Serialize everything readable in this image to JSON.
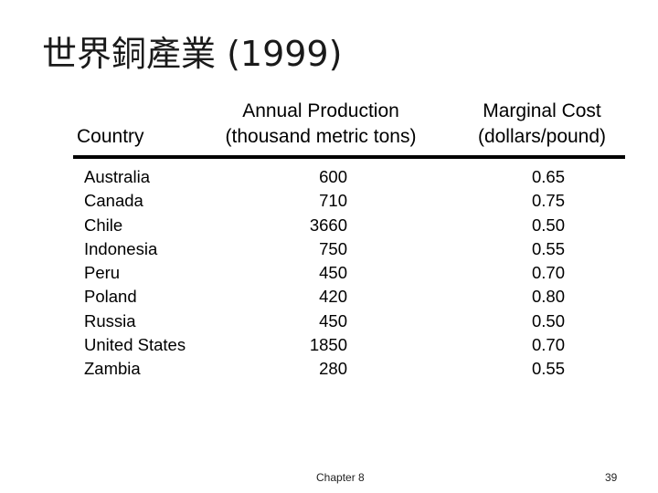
{
  "title": "世界銅產業 (1999)",
  "table": {
    "headers": {
      "country": "Country",
      "production_line1": "Annual Production",
      "production_line2": "(thousand metric tons)",
      "cost_line1": "Marginal Cost",
      "cost_line2": "(dollars/pound)"
    },
    "rows": [
      {
        "country": "Australia",
        "production": "600",
        "cost": "0.65"
      },
      {
        "country": "Canada",
        "production": "710",
        "cost": "0.75"
      },
      {
        "country": "Chile",
        "production": "3660",
        "cost": "0.50"
      },
      {
        "country": "Indonesia",
        "production": "750",
        "cost": "0.55"
      },
      {
        "country": "Peru",
        "production": "450",
        "cost": "0.70"
      },
      {
        "country": "Poland",
        "production": "420",
        "cost": "0.80"
      },
      {
        "country": "Russia",
        "production": "450",
        "cost": "0.50"
      },
      {
        "country": "United States",
        "production": "1850",
        "cost": "0.70"
      },
      {
        "country": "Zambia",
        "production": "280",
        "cost": "0.55"
      }
    ]
  },
  "footer": {
    "chapter": "Chapter 8",
    "page": "39"
  }
}
